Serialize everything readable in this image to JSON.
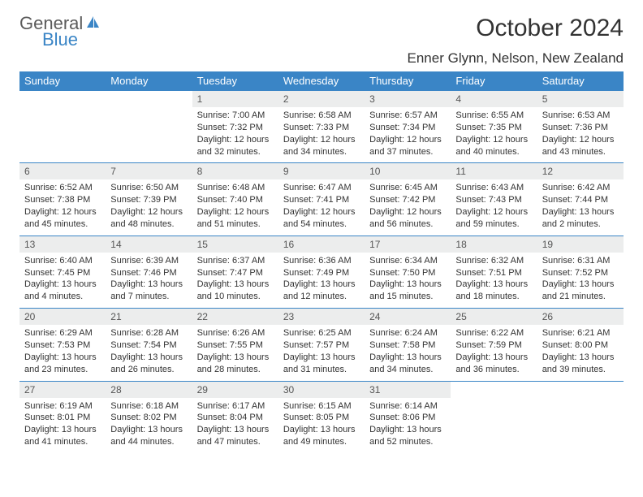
{
  "logo": {
    "line1": "General",
    "line2": "Blue",
    "icon_color": "#3a85c6",
    "text1_color": "#5b5b5b"
  },
  "title": "October 2024",
  "location": "Enner Glynn, Nelson, New Zealand",
  "colors": {
    "header_bg": "#3a85c6",
    "header_fg": "#ffffff",
    "daynum_bg": "#eceded",
    "border": "#3a85c6",
    "text": "#333333"
  },
  "weekdays": [
    "Sunday",
    "Monday",
    "Tuesday",
    "Wednesday",
    "Thursday",
    "Friday",
    "Saturday"
  ],
  "weeks": [
    {
      "nums": [
        "",
        "",
        "1",
        "2",
        "3",
        "4",
        "5"
      ],
      "cells": [
        null,
        null,
        {
          "sunrise": "Sunrise: 7:00 AM",
          "sunset": "Sunset: 7:32 PM",
          "day1": "Daylight: 12 hours",
          "day2": "and 32 minutes."
        },
        {
          "sunrise": "Sunrise: 6:58 AM",
          "sunset": "Sunset: 7:33 PM",
          "day1": "Daylight: 12 hours",
          "day2": "and 34 minutes."
        },
        {
          "sunrise": "Sunrise: 6:57 AM",
          "sunset": "Sunset: 7:34 PM",
          "day1": "Daylight: 12 hours",
          "day2": "and 37 minutes."
        },
        {
          "sunrise": "Sunrise: 6:55 AM",
          "sunset": "Sunset: 7:35 PM",
          "day1": "Daylight: 12 hours",
          "day2": "and 40 minutes."
        },
        {
          "sunrise": "Sunrise: 6:53 AM",
          "sunset": "Sunset: 7:36 PM",
          "day1": "Daylight: 12 hours",
          "day2": "and 43 minutes."
        }
      ]
    },
    {
      "nums": [
        "6",
        "7",
        "8",
        "9",
        "10",
        "11",
        "12"
      ],
      "cells": [
        {
          "sunrise": "Sunrise: 6:52 AM",
          "sunset": "Sunset: 7:38 PM",
          "day1": "Daylight: 12 hours",
          "day2": "and 45 minutes."
        },
        {
          "sunrise": "Sunrise: 6:50 AM",
          "sunset": "Sunset: 7:39 PM",
          "day1": "Daylight: 12 hours",
          "day2": "and 48 minutes."
        },
        {
          "sunrise": "Sunrise: 6:48 AM",
          "sunset": "Sunset: 7:40 PM",
          "day1": "Daylight: 12 hours",
          "day2": "and 51 minutes."
        },
        {
          "sunrise": "Sunrise: 6:47 AM",
          "sunset": "Sunset: 7:41 PM",
          "day1": "Daylight: 12 hours",
          "day2": "and 54 minutes."
        },
        {
          "sunrise": "Sunrise: 6:45 AM",
          "sunset": "Sunset: 7:42 PM",
          "day1": "Daylight: 12 hours",
          "day2": "and 56 minutes."
        },
        {
          "sunrise": "Sunrise: 6:43 AM",
          "sunset": "Sunset: 7:43 PM",
          "day1": "Daylight: 12 hours",
          "day2": "and 59 minutes."
        },
        {
          "sunrise": "Sunrise: 6:42 AM",
          "sunset": "Sunset: 7:44 PM",
          "day1": "Daylight: 13 hours",
          "day2": "and 2 minutes."
        }
      ]
    },
    {
      "nums": [
        "13",
        "14",
        "15",
        "16",
        "17",
        "18",
        "19"
      ],
      "cells": [
        {
          "sunrise": "Sunrise: 6:40 AM",
          "sunset": "Sunset: 7:45 PM",
          "day1": "Daylight: 13 hours",
          "day2": "and 4 minutes."
        },
        {
          "sunrise": "Sunrise: 6:39 AM",
          "sunset": "Sunset: 7:46 PM",
          "day1": "Daylight: 13 hours",
          "day2": "and 7 minutes."
        },
        {
          "sunrise": "Sunrise: 6:37 AM",
          "sunset": "Sunset: 7:47 PM",
          "day1": "Daylight: 13 hours",
          "day2": "and 10 minutes."
        },
        {
          "sunrise": "Sunrise: 6:36 AM",
          "sunset": "Sunset: 7:49 PM",
          "day1": "Daylight: 13 hours",
          "day2": "and 12 minutes."
        },
        {
          "sunrise": "Sunrise: 6:34 AM",
          "sunset": "Sunset: 7:50 PM",
          "day1": "Daylight: 13 hours",
          "day2": "and 15 minutes."
        },
        {
          "sunrise": "Sunrise: 6:32 AM",
          "sunset": "Sunset: 7:51 PM",
          "day1": "Daylight: 13 hours",
          "day2": "and 18 minutes."
        },
        {
          "sunrise": "Sunrise: 6:31 AM",
          "sunset": "Sunset: 7:52 PM",
          "day1": "Daylight: 13 hours",
          "day2": "and 21 minutes."
        }
      ]
    },
    {
      "nums": [
        "20",
        "21",
        "22",
        "23",
        "24",
        "25",
        "26"
      ],
      "cells": [
        {
          "sunrise": "Sunrise: 6:29 AM",
          "sunset": "Sunset: 7:53 PM",
          "day1": "Daylight: 13 hours",
          "day2": "and 23 minutes."
        },
        {
          "sunrise": "Sunrise: 6:28 AM",
          "sunset": "Sunset: 7:54 PM",
          "day1": "Daylight: 13 hours",
          "day2": "and 26 minutes."
        },
        {
          "sunrise": "Sunrise: 6:26 AM",
          "sunset": "Sunset: 7:55 PM",
          "day1": "Daylight: 13 hours",
          "day2": "and 28 minutes."
        },
        {
          "sunrise": "Sunrise: 6:25 AM",
          "sunset": "Sunset: 7:57 PM",
          "day1": "Daylight: 13 hours",
          "day2": "and 31 minutes."
        },
        {
          "sunrise": "Sunrise: 6:24 AM",
          "sunset": "Sunset: 7:58 PM",
          "day1": "Daylight: 13 hours",
          "day2": "and 34 minutes."
        },
        {
          "sunrise": "Sunrise: 6:22 AM",
          "sunset": "Sunset: 7:59 PM",
          "day1": "Daylight: 13 hours",
          "day2": "and 36 minutes."
        },
        {
          "sunrise": "Sunrise: 6:21 AM",
          "sunset": "Sunset: 8:00 PM",
          "day1": "Daylight: 13 hours",
          "day2": "and 39 minutes."
        }
      ]
    },
    {
      "nums": [
        "27",
        "28",
        "29",
        "30",
        "31",
        "",
        ""
      ],
      "cells": [
        {
          "sunrise": "Sunrise: 6:19 AM",
          "sunset": "Sunset: 8:01 PM",
          "day1": "Daylight: 13 hours",
          "day2": "and 41 minutes."
        },
        {
          "sunrise": "Sunrise: 6:18 AM",
          "sunset": "Sunset: 8:02 PM",
          "day1": "Daylight: 13 hours",
          "day2": "and 44 minutes."
        },
        {
          "sunrise": "Sunrise: 6:17 AM",
          "sunset": "Sunset: 8:04 PM",
          "day1": "Daylight: 13 hours",
          "day2": "and 47 minutes."
        },
        {
          "sunrise": "Sunrise: 6:15 AM",
          "sunset": "Sunset: 8:05 PM",
          "day1": "Daylight: 13 hours",
          "day2": "and 49 minutes."
        },
        {
          "sunrise": "Sunrise: 6:14 AM",
          "sunset": "Sunset: 8:06 PM",
          "day1": "Daylight: 13 hours",
          "day2": "and 52 minutes."
        },
        null,
        null
      ]
    }
  ]
}
